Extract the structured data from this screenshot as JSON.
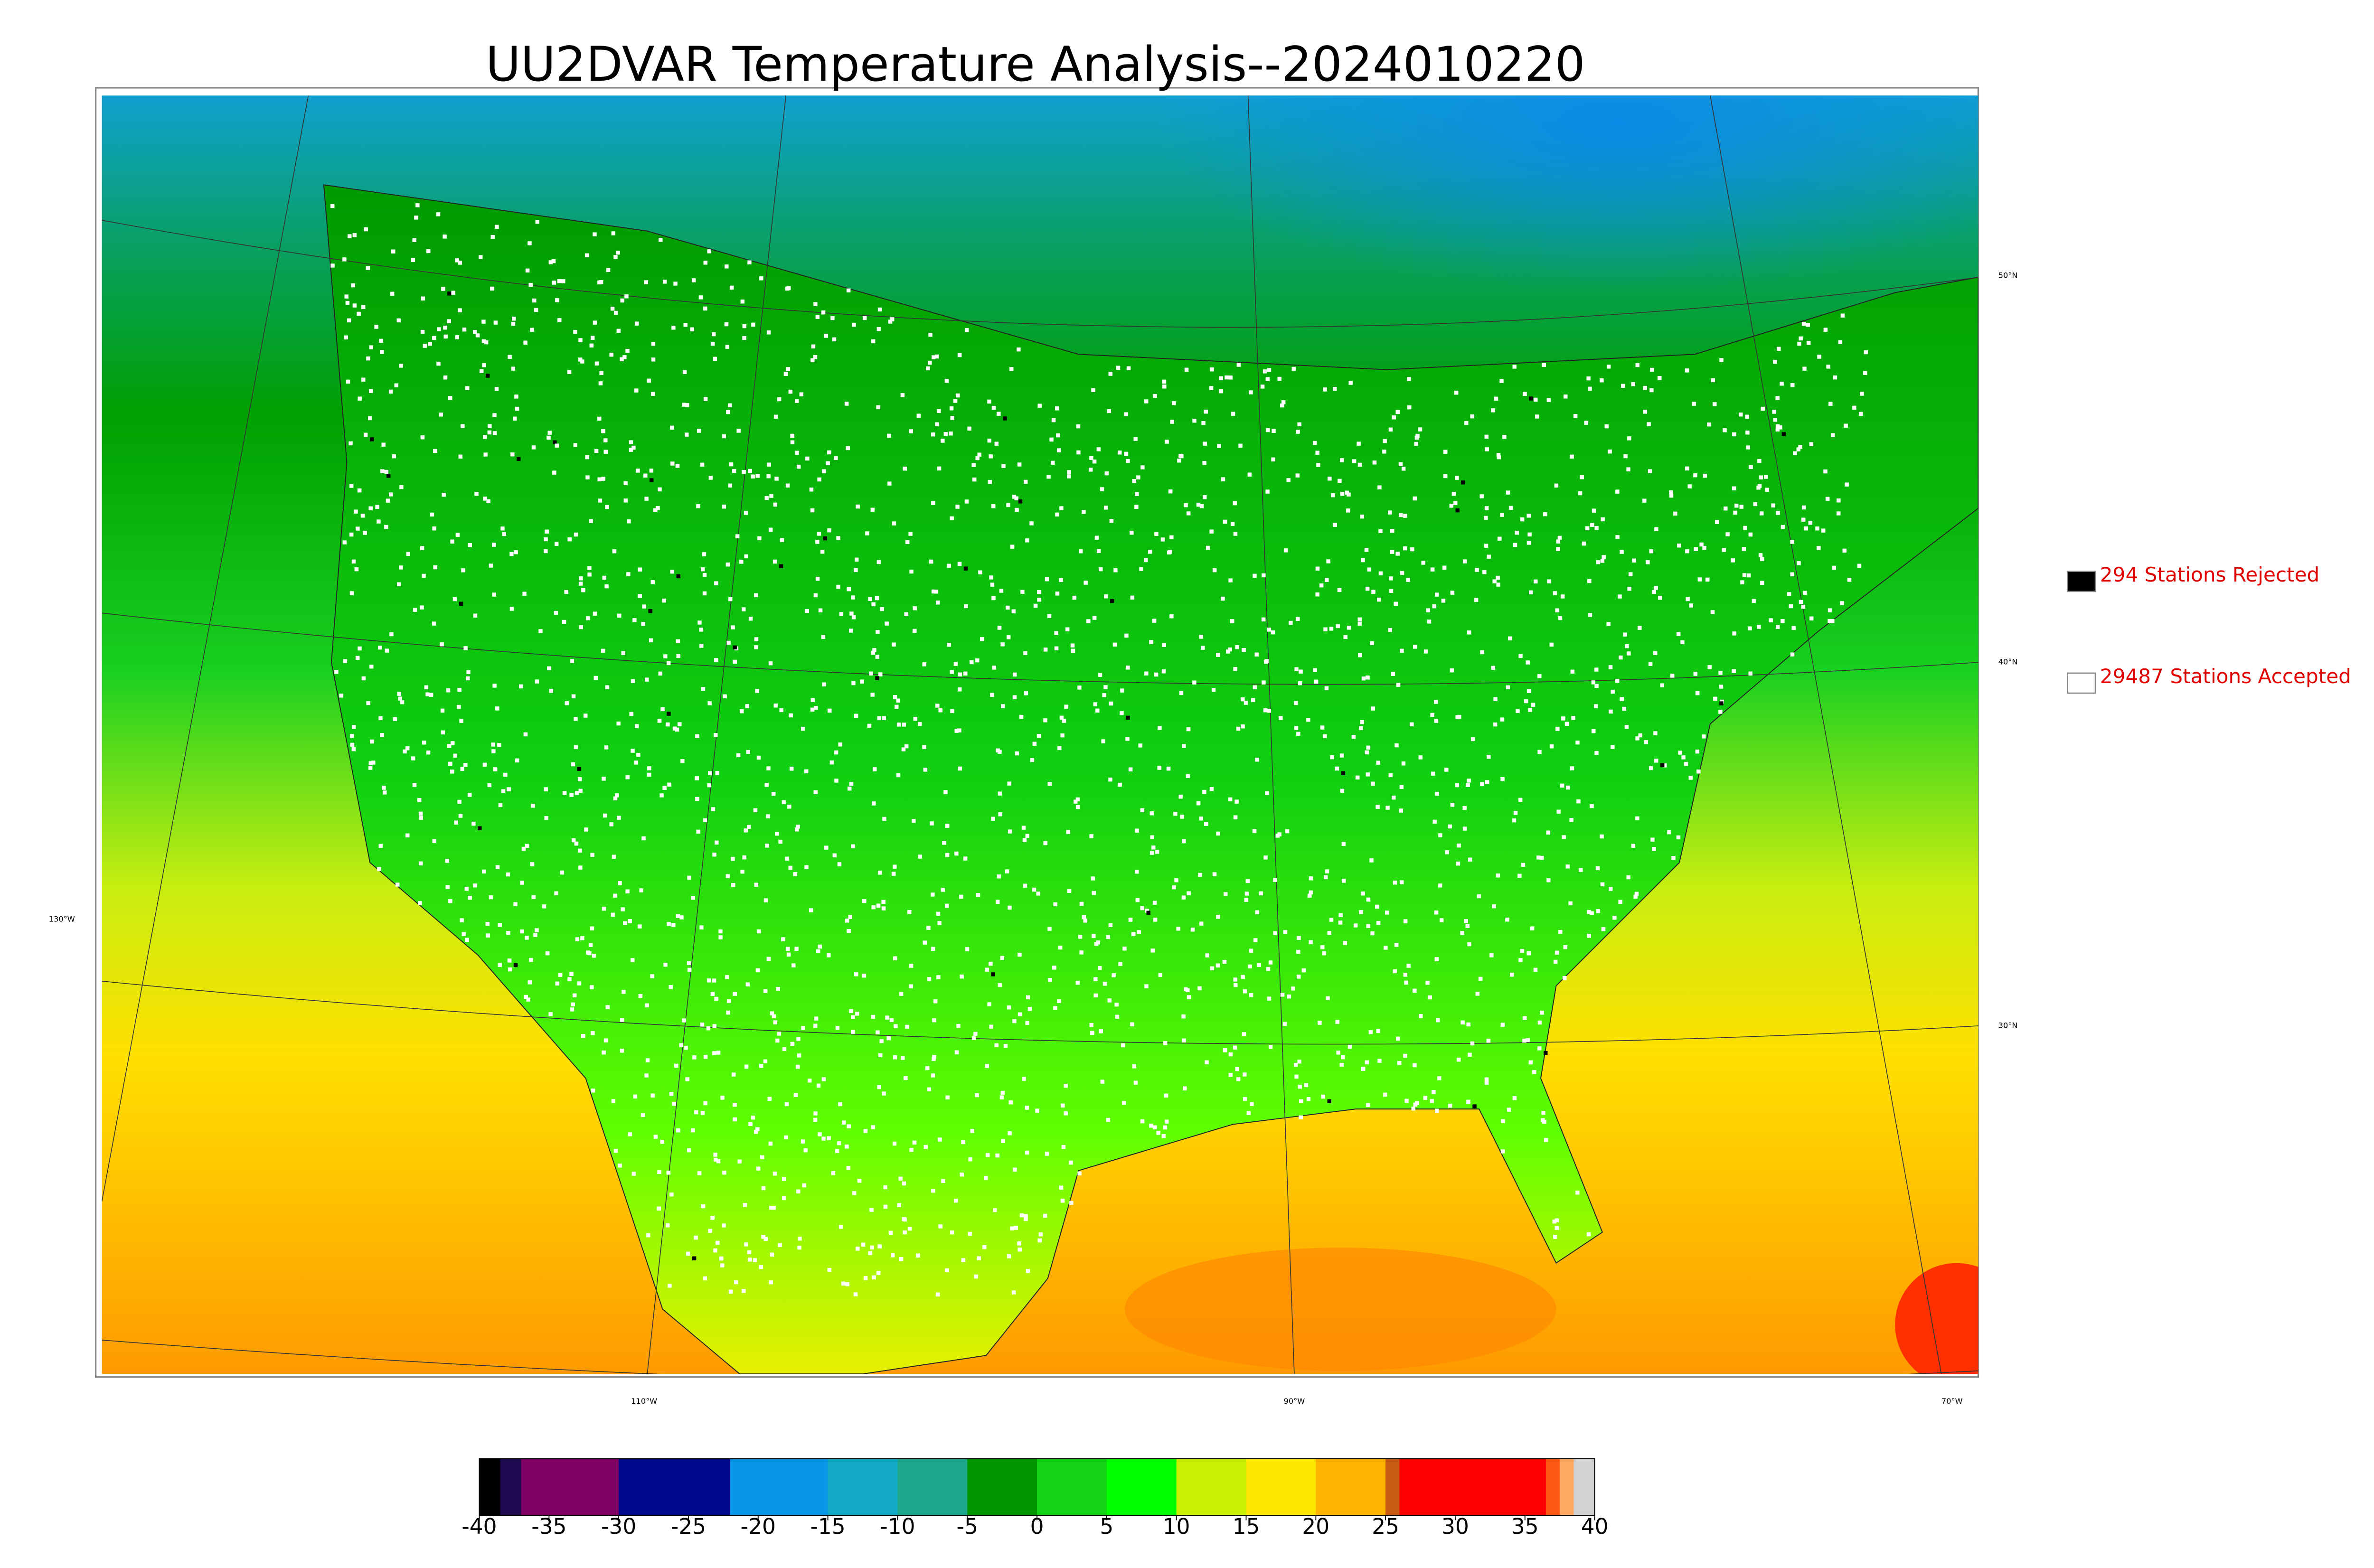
{
  "title": "UU2DVAR Temperature Analysis--2024010220",
  "map": {
    "lat_labels": [
      "50°N",
      "40°N",
      "30°N"
    ],
    "lon_labels": [
      "130°W",
      "110°W",
      "90°W",
      "70°W"
    ]
  },
  "legend": [
    {
      "label": "294 Stations Rejected",
      "color": "#000000"
    },
    {
      "label": "29487 Stations Accepted",
      "color": "#ffffff"
    }
  ],
  "colorbar": {
    "lim": [
      -40,
      40
    ],
    "ticks": [
      -40,
      -35,
      -30,
      -25,
      -20,
      -15,
      -10,
      -5,
      0,
      5,
      10,
      15,
      20,
      25,
      30,
      35,
      40
    ],
    "segments": [
      {
        "from": -40,
        "to": -38.5,
        "color": "#000000"
      },
      {
        "from": -38.5,
        "to": -37,
        "color": "#1e0a50"
      },
      {
        "from": -37,
        "to": -30,
        "color": "#800064"
      },
      {
        "from": -30,
        "to": -22,
        "color": "#000a8c"
      },
      {
        "from": -22,
        "to": -15,
        "color": "#0a96e6"
      },
      {
        "from": -15,
        "to": -10,
        "color": "#12aac4"
      },
      {
        "from": -10,
        "to": -5,
        "color": "#1ea88c"
      },
      {
        "from": -5,
        "to": 0,
        "color": "#009600"
      },
      {
        "from": 0,
        "to": 5,
        "color": "#14d214"
      },
      {
        "from": 5,
        "to": 10,
        "color": "#00ff00"
      },
      {
        "from": 10,
        "to": 15,
        "color": "#c8f000"
      },
      {
        "from": 15,
        "to": 20,
        "color": "#ffe600"
      },
      {
        "from": 20,
        "to": 25,
        "color": "#ffb400"
      },
      {
        "from": 25,
        "to": 26,
        "color": "#c85a14"
      },
      {
        "from": 26,
        "to": 36.5,
        "color": "#ff0000"
      },
      {
        "from": 36.5,
        "to": 37.5,
        "color": "#ff5a14"
      },
      {
        "from": 37.5,
        "to": 38.5,
        "color": "#ffaa64"
      },
      {
        "from": 38.5,
        "to": 40,
        "color": "#d2d2d2"
      }
    ]
  }
}
